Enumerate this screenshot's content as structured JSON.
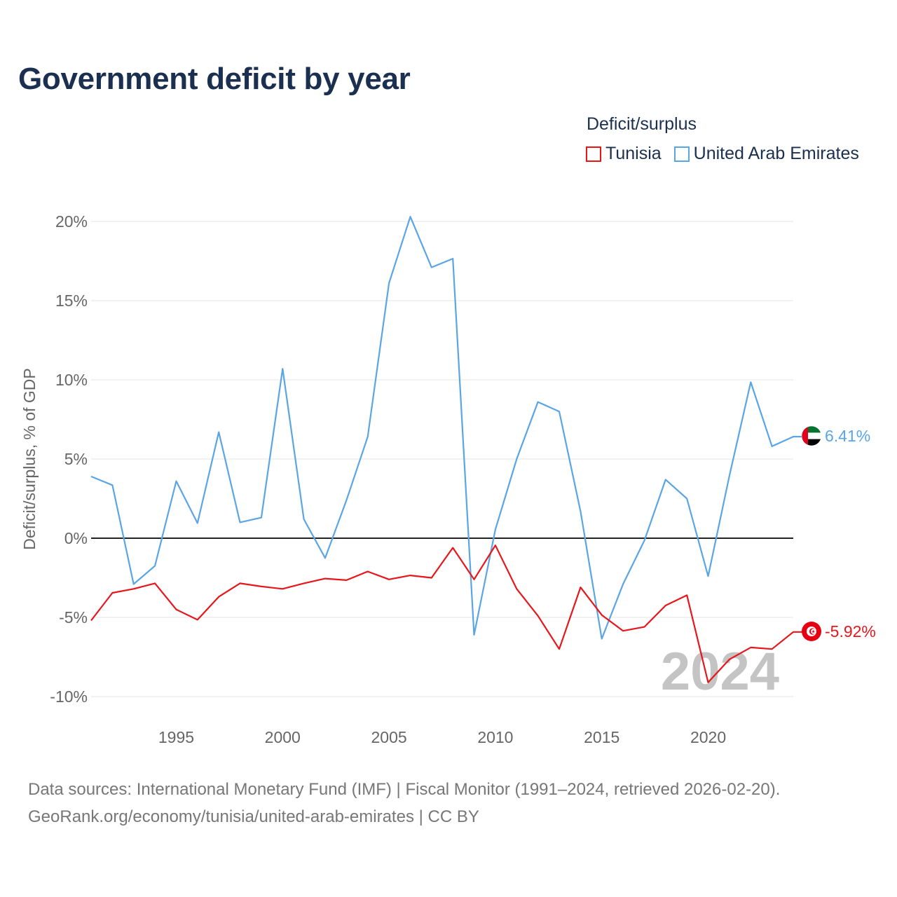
{
  "title": "Government deficit by year",
  "legend": {
    "title": "Deficit/surplus",
    "items": [
      {
        "name": "Tunisia",
        "color": "#e8161b"
      },
      {
        "name": "United Arab Emirates",
        "color": "#5aa5e6"
      }
    ]
  },
  "watermark_year": "2024",
  "footer": {
    "sources": "Data sources: International Monetary Fund (IMF) | Fiscal Monitor (1991–2024, retrieved 2026-02-20).",
    "attribution": "GeoRank.org/economy/tunisia/united-arab-emirates | CC BY"
  },
  "chart_data": {
    "type": "line",
    "title": "Government deficit by year",
    "xlabel": "",
    "ylabel": "Deficit/surplus, % of GDP",
    "xlim": [
      1991,
      2024
    ],
    "ylim": [
      -10,
      20
    ],
    "xticks": [
      1995,
      2000,
      2005,
      2010,
      2015,
      2020
    ],
    "yticks": [
      -10,
      -5,
      0,
      5,
      10,
      15,
      20
    ],
    "ytick_labels": [
      "-10%",
      "-5%",
      "0%",
      "5%",
      "10%",
      "15%",
      "20%"
    ],
    "zero_line": true,
    "x": [
      1991,
      1992,
      1993,
      1994,
      1995,
      1996,
      1997,
      1998,
      1999,
      2000,
      2001,
      2002,
      2003,
      2004,
      2005,
      2006,
      2007,
      2008,
      2009,
      2010,
      2011,
      2012,
      2013,
      2014,
      2015,
      2016,
      2017,
      2018,
      2019,
      2020,
      2021,
      2022,
      2023,
      2024
    ],
    "series": [
      {
        "name": "Tunisia",
        "color": "#e8161b",
        "end_label": "-5.92%",
        "values": [
          -5.2,
          -3.45,
          -3.2,
          -2.85,
          -4.5,
          -5.15,
          -3.7,
          -2.85,
          -3.05,
          -3.2,
          -2.85,
          -2.55,
          -2.65,
          -2.1,
          -2.6,
          -2.35,
          -2.5,
          -0.6,
          -2.6,
          -0.45,
          -3.2,
          -4.9,
          -7.0,
          -3.1,
          -4.85,
          -5.85,
          -5.6,
          -4.25,
          -3.6,
          -9.1,
          -7.65,
          -6.9,
          -7.0,
          -5.92
        ]
      },
      {
        "name": "United Arab Emirates",
        "color": "#5aa5e6",
        "end_label": "6.41%",
        "values": [
          3.9,
          3.35,
          -2.9,
          -1.75,
          3.6,
          0.95,
          6.7,
          1.0,
          1.3,
          10.7,
          1.2,
          -1.25,
          2.4,
          6.4,
          16.1,
          20.3,
          17.1,
          17.65,
          -6.1,
          0.55,
          5.0,
          8.6,
          8.0,
          1.7,
          -6.35,
          -2.9,
          -0.15,
          3.7,
          2.5,
          -2.4,
          3.95,
          9.85,
          5.8,
          6.41
        ]
      }
    ]
  }
}
